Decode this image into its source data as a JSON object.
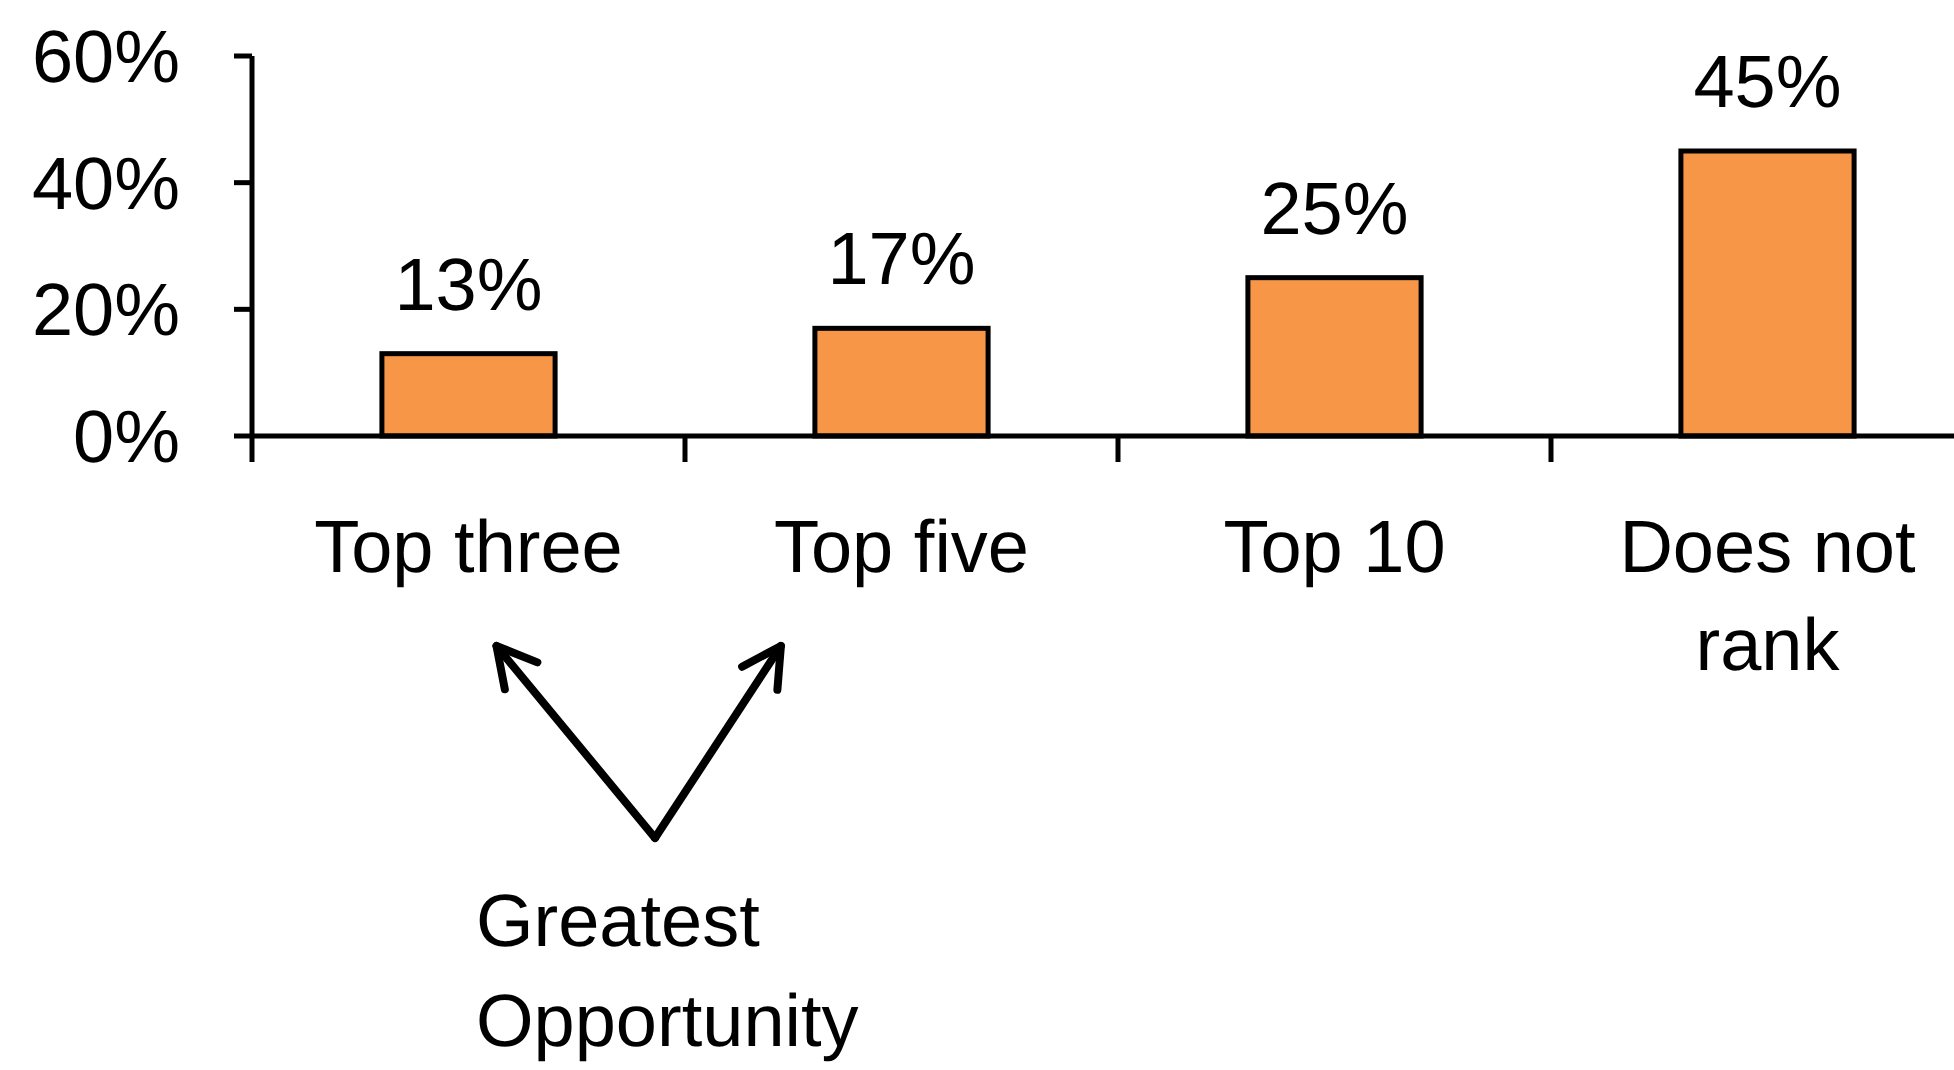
{
  "chart_data": {
    "type": "bar",
    "categories": [
      "Top three",
      "Top five",
      "Top 10",
      "Does not rank"
    ],
    "values": [
      13,
      17,
      25,
      45
    ],
    "color": "#f79646",
    "value_labels": [
      "13%",
      "17%",
      "25%",
      "45%"
    ],
    "ylim": [
      0,
      60
    ],
    "yticks": [
      {
        "value": 0,
        "label": "0%"
      },
      {
        "value": 20,
        "label": "20%"
      },
      {
        "value": 40,
        "label": "40%"
      },
      {
        "value": 60,
        "label": "60%"
      }
    ],
    "annotations": [
      "Greatest Opportunity"
    ]
  }
}
